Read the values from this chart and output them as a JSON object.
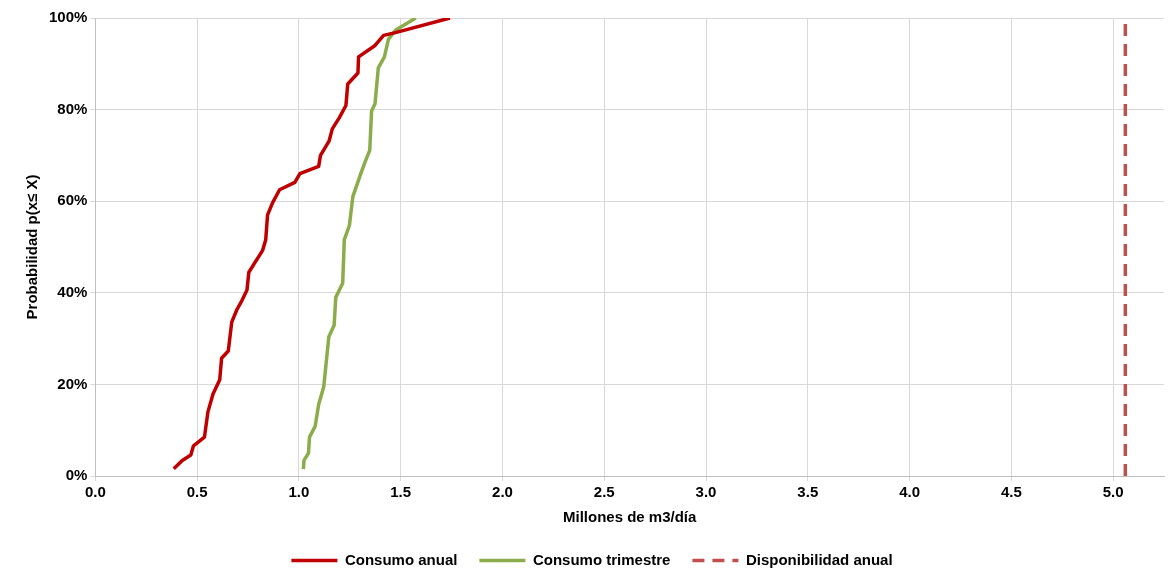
{
  "chart_data": {
    "type": "line",
    "xlabel": "Millones de m3/día",
    "ylabel": "Probabilidad p(x≤ X)",
    "xlim": [
      0,
      5.25
    ],
    "xticks": [
      {
        "value": 0,
        "label": "0.0"
      },
      {
        "value": 0.5,
        "label": "0.5"
      },
      {
        "value": 1,
        "label": "1.0"
      },
      {
        "value": 1.5,
        "label": "1.5"
      },
      {
        "value": 2,
        "label": "2.0"
      },
      {
        "value": 2.5,
        "label": "2.5"
      },
      {
        "value": 3,
        "label": "3.0"
      },
      {
        "value": 3.5,
        "label": "3.5"
      },
      {
        "value": 4,
        "label": "4.0"
      },
      {
        "value": 4.5,
        "label": "4.5"
      },
      {
        "value": 5,
        "label": "5.0"
      }
    ],
    "ylim": [
      0,
      100
    ],
    "yticks": [
      {
        "value": 0,
        "label": "0%"
      },
      {
        "value": 20,
        "label": "20%"
      },
      {
        "value": 40,
        "label": "40%"
      },
      {
        "value": 60,
        "label": "60%"
      },
      {
        "value": 80,
        "label": "80%"
      },
      {
        "value": 100,
        "label": "100%"
      }
    ],
    "grid": true,
    "legend": "bottom",
    "marker": "none",
    "series": [
      {
        "name": "Consumo anual",
        "color": "#c00000",
        "line_style": "solid",
        "x": [
          0.385,
          0.427,
          0.469,
          0.482,
          0.536,
          0.553,
          0.578,
          0.611,
          0.62,
          0.653,
          0.67,
          0.695,
          0.72,
          0.745,
          0.754,
          0.821,
          0.837,
          0.846,
          0.871,
          0.905,
          0.98,
          1.005,
          1.097,
          1.106,
          1.148,
          1.164,
          1.198,
          1.231,
          1.24,
          1.29,
          1.293,
          1.374,
          1.416,
          1.474,
          1.742
        ],
        "values": [
          1.6,
          3.4,
          4.6,
          6.6,
          8.5,
          14.0,
          17.9,
          21.0,
          25.7,
          27.3,
          33.6,
          36.3,
          38.3,
          40.6,
          44.5,
          49.2,
          51.6,
          57.0,
          59.7,
          62.5,
          64.1,
          66.0,
          67.6,
          70.0,
          73.1,
          75.8,
          78.2,
          80.9,
          85.6,
          88.0,
          91.5,
          94.0,
          96.2,
          96.8,
          100
        ]
      },
      {
        "name": "Consumo trimestre",
        "color": "#8aac4a",
        "line_style": "solid",
        "x": [
          1.022,
          1.025,
          1.047,
          1.052,
          1.08,
          1.097,
          1.122,
          1.147,
          1.173,
          1.181,
          1.215,
          1.223,
          1.248,
          1.265,
          1.307,
          1.327,
          1.348,
          1.357,
          1.374,
          1.39,
          1.42,
          1.44,
          1.474,
          1.574
        ],
        "values": [
          1.5,
          3.4,
          5.0,
          8.5,
          10.9,
          15.6,
          19.5,
          30.4,
          32.9,
          39.0,
          42.1,
          51.6,
          54.7,
          61.0,
          66.4,
          68.8,
          71.1,
          79.7,
          81.3,
          89.1,
          91.5,
          95.4,
          97.3,
          100
        ]
      },
      {
        "name": "Disponibilidad anual",
        "color": "#c0504d",
        "line_style": "dashed",
        "x": [
          5.06,
          5.06
        ],
        "values": [
          0,
          100
        ]
      }
    ]
  }
}
